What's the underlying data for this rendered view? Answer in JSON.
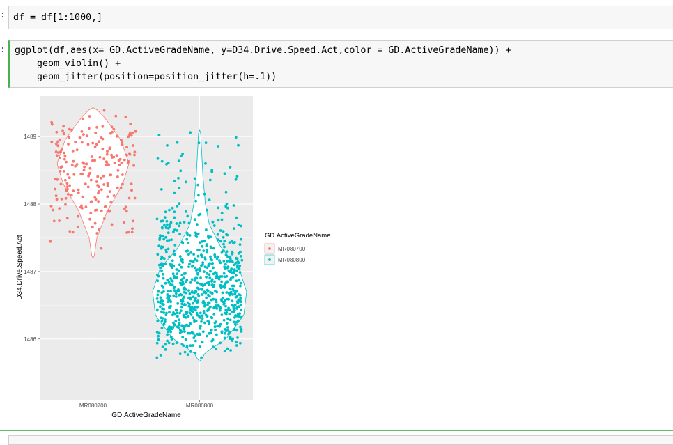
{
  "cells": [
    {
      "prompt": ":",
      "code": "df = df[1:1000,]"
    },
    {
      "prompt": ":",
      "lines": [
        "ggplot(df,aes(x= GD.ActiveGradeName, y=D34.Drive.Speed.Act,color = GD.ActiveGradeName)) +",
        "    geom_violin() +",
        "    geom_jitter(position=position_jitter(h=.1))"
      ]
    }
  ],
  "chart_data": {
    "type": "scatter",
    "subtype": "violin + jitter",
    "xlabel": "GD.ActiveGradeName",
    "ylabel": "D34.Drive.Speed.Act",
    "categories": [
      "MR080700",
      "MR080800"
    ],
    "y_ticks": [
      1486,
      1487,
      1488,
      1489
    ],
    "ylim": [
      1485.1,
      1489.6
    ],
    "legend": {
      "title": "GD.ActiveGradeName",
      "position": "right",
      "entries": [
        "MR080700",
        "MR080800"
      ]
    },
    "grid": true,
    "series": [
      {
        "name": "MR080700",
        "color": "#f8766d",
        "n_points": 220,
        "violin": {
          "min": 1487.2,
          "max": 1489.43,
          "profile": [
            [
              1487.2,
              0.02
            ],
            [
              1487.5,
              0.08
            ],
            [
              1487.9,
              0.3
            ],
            [
              1488.3,
              0.62
            ],
            [
              1488.6,
              0.75
            ],
            [
              1488.95,
              0.58
            ],
            [
              1489.15,
              0.38
            ],
            [
              1489.3,
              0.22
            ],
            [
              1489.43,
              0.04
            ]
          ]
        }
      },
      {
        "name": "MR080800",
        "color": "#00bfc4",
        "n_points": 780,
        "violin": {
          "min": 1485.67,
          "max": 1489.1,
          "profile": [
            [
              1485.67,
              0.02
            ],
            [
              1485.8,
              0.12
            ],
            [
              1486.0,
              0.55
            ],
            [
              1486.35,
              0.92
            ],
            [
              1486.7,
              0.98
            ],
            [
              1487.05,
              0.82
            ],
            [
              1487.35,
              0.45
            ],
            [
              1487.7,
              0.2
            ],
            [
              1488.0,
              0.12
            ],
            [
              1488.4,
              0.07
            ],
            [
              1488.8,
              0.04
            ],
            [
              1489.1,
              0.02
            ]
          ]
        }
      }
    ]
  }
}
